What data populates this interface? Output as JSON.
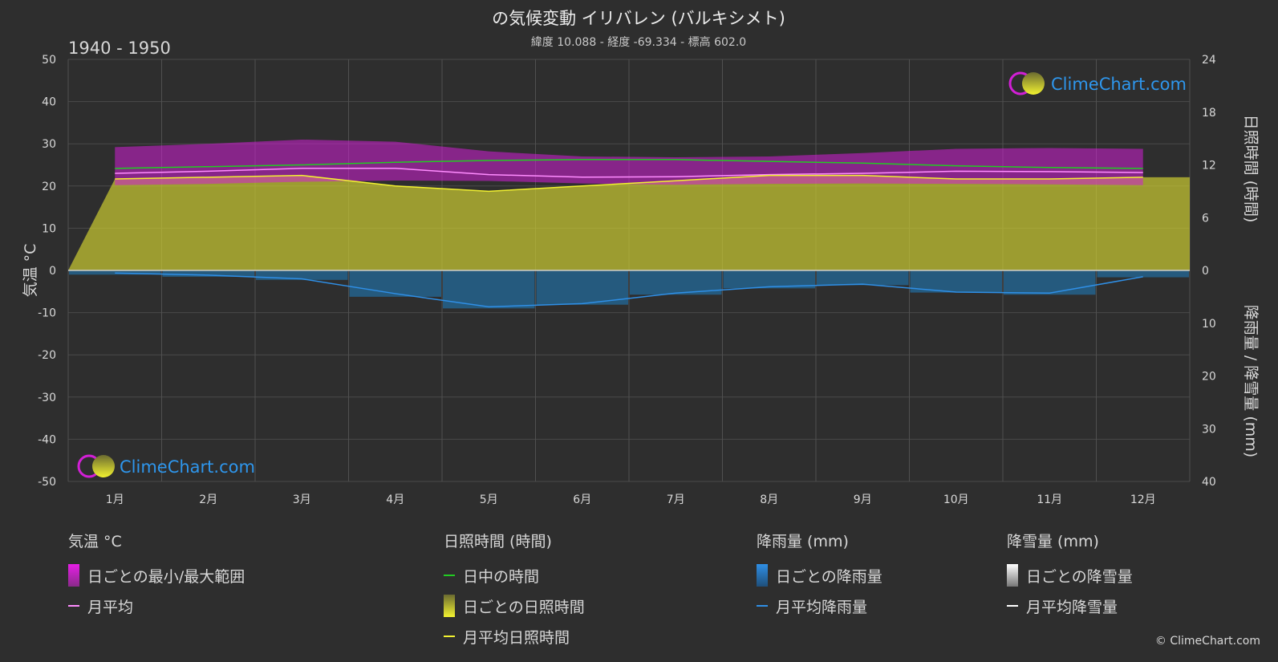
{
  "header": {
    "title": "の気候変動 イリバレン (バルキシメト)",
    "subtitle": "緯度 10.088 - 経度 -69.334 - 標高 602.0",
    "period": "1940 - 1950"
  },
  "logo_text": "ClimeChart.com",
  "copyright": "© ClimeChart.com",
  "colors": {
    "background": "#2e2e2e",
    "temp_range": "#d21fd6",
    "temp_mean": "#ff8cff",
    "daylight": "#22cc22",
    "sunshine": "#c8c832",
    "sunshine_mean": "#f2f230",
    "rain": "#1f78b4",
    "rain_mean": "#2f8fe6",
    "snow_mean": "#ffffff",
    "logo_blue": "#2e96ec"
  },
  "chart_data": {
    "type": "line",
    "categories": [
      "1月",
      "2月",
      "3月",
      "4月",
      "5月",
      "6月",
      "7月",
      "8月",
      "9月",
      "10月",
      "11月",
      "12月"
    ],
    "ylabel": "気温 °C",
    "y2label_top": "日照時間 (時間)",
    "y2label_bottom": "降雨量 / 降雪量 (mm)",
    "ylim": [
      -50,
      50
    ],
    "y_ticks": [
      50,
      40,
      30,
      20,
      10,
      0,
      -10,
      -20,
      -30,
      -40,
      -50
    ],
    "sun_ticks": [
      24,
      18,
      12,
      6,
      0
    ],
    "sun_lim": [
      0,
      24
    ],
    "precip_ticks": [
      0,
      10,
      20,
      30,
      40
    ],
    "precip_lim": [
      0,
      40
    ],
    "grid": true,
    "series": [
      {
        "name": "日ごとの最小/最大範囲",
        "kind": "band",
        "axis": "temp",
        "low": [
          20.2,
          20.5,
          21.0,
          21.3,
          21.2,
          20.6,
          20.3,
          20.5,
          20.6,
          20.5,
          20.4,
          20.2
        ],
        "high": [
          29.2,
          30.0,
          31.0,
          30.5,
          28.2,
          27.0,
          26.8,
          27.0,
          27.8,
          28.8,
          29.0,
          28.8
        ]
      },
      {
        "name": "月平均",
        "kind": "line",
        "axis": "temp",
        "values": [
          23.0,
          23.5,
          24.2,
          24.2,
          22.7,
          22.1,
          22.2,
          22.7,
          23.0,
          23.5,
          23.4,
          23.2
        ]
      },
      {
        "name": "日中の時間",
        "kind": "line",
        "axis": "sun",
        "values": [
          11.6,
          11.8,
          12.0,
          12.3,
          12.5,
          12.6,
          12.6,
          12.4,
          12.2,
          11.9,
          11.7,
          11.6
        ]
      },
      {
        "name": "日ごとの日照時間",
        "kind": "area",
        "axis": "sun",
        "values": [
          10.4,
          10.6,
          10.8,
          9.6,
          9.0,
          9.6,
          10.2,
          10.8,
          10.8,
          10.4,
          10.4,
          10.6
        ]
      },
      {
        "name": "月平均日照時間",
        "kind": "line",
        "axis": "sun",
        "values": [
          10.4,
          10.6,
          10.8,
          9.6,
          9.0,
          9.6,
          10.2,
          10.8,
          10.8,
          10.4,
          10.4,
          10.6
        ]
      },
      {
        "name": "日ごとの降雨量",
        "kind": "bars",
        "axis": "precip",
        "values": [
          0.8,
          1.2,
          1.8,
          5.0,
          7.2,
          6.5,
          4.6,
          3.4,
          2.8,
          4.2,
          4.6,
          1.3
        ]
      },
      {
        "name": "月平均降雨量",
        "kind": "line",
        "axis": "precip",
        "values": [
          0.5,
          0.9,
          1.6,
          4.4,
          6.9,
          6.3,
          4.3,
          3.1,
          2.6,
          4.1,
          4.3,
          1.2
        ]
      },
      {
        "name": "月平均降雪量",
        "kind": "line",
        "axis": "precip",
        "values": [
          0,
          0,
          0,
          0,
          0,
          0,
          0,
          0,
          0,
          0,
          0,
          0
        ]
      }
    ]
  },
  "legend": {
    "temp": {
      "heading": "気温 °C",
      "range": "日ごとの最小/最大範囲",
      "mean": "月平均"
    },
    "sun": {
      "heading": "日照時間 (時間)",
      "daylight": "日中の時間",
      "daily": "日ごとの日照時間",
      "mean": "月平均日照時間"
    },
    "rain": {
      "heading": "降雨量 (mm)",
      "daily": "日ごとの降雨量",
      "mean": "月平均降雨量"
    },
    "snow": {
      "heading": "降雪量 (mm)",
      "daily": "日ごとの降雪量",
      "mean": "月平均降雪量"
    }
  }
}
